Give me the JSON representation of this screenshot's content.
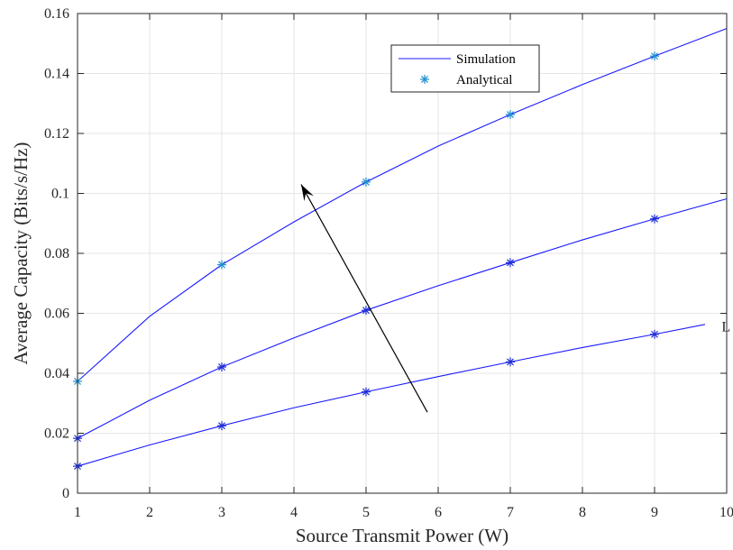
{
  "chart_data": {
    "type": "line",
    "xlabel": "Source Transmit Power (W)",
    "ylabel": "Average Capacity (Bits/s/Hz)",
    "xlim": [
      1,
      10
    ],
    "ylim": [
      0,
      0.16
    ],
    "xticks": [
      "1",
      "2",
      "3",
      "4",
      "5",
      "6",
      "7",
      "8",
      "9",
      "10"
    ],
    "yticks": [
      "0",
      "0.02",
      "0.04",
      "0.06",
      "0.08",
      "0.1",
      "0.12",
      "0.14",
      "0.16"
    ],
    "grid": true,
    "legend": {
      "position": "top-center",
      "entries": [
        {
          "label": "Simulation",
          "style": "line"
        },
        {
          "label": "Analytical",
          "style": "asterisk"
        }
      ]
    },
    "series": [
      {
        "role": "simulation",
        "x": [
          1,
          2,
          3,
          4,
          5,
          6,
          7,
          8,
          9,
          10
        ],
        "y": [
          0.0373,
          0.059,
          0.0762,
          0.0905,
          0.1038,
          0.1158,
          0.1263,
          0.1363,
          0.1458,
          0.155
        ],
        "marker_color": "#1f8fcf"
      },
      {
        "role": "simulation",
        "x": [
          1,
          2,
          3,
          4,
          5,
          6,
          7,
          8,
          9,
          10
        ],
        "y": [
          0.0183,
          0.031,
          0.0421,
          0.0518,
          0.061,
          0.0692,
          0.0769,
          0.0845,
          0.0915,
          0.0982
        ],
        "marker_color": "#1f2fd4"
      },
      {
        "role": "simulation",
        "x": [
          1,
          2,
          3,
          4,
          5,
          6,
          7,
          8,
          9,
          9.7
        ],
        "y": [
          0.009,
          0.0161,
          0.0225,
          0.0285,
          0.0338,
          0.0389,
          0.0438,
          0.0486,
          0.053,
          0.0563
        ],
        "marker_color": "#1f2fd4"
      }
    ],
    "markers_at": [
      1,
      3,
      5,
      7,
      9
    ],
    "annotations": [
      {
        "type": "arrow",
        "from": [
          5.85,
          0.027
        ],
        "to": [
          4.1,
          0.103
        ]
      },
      {
        "type": "text",
        "text": "L",
        "x": 9.93,
        "y": 0.0555
      }
    ],
    "colors": {
      "line": "#1a1aff",
      "axis": "#262626",
      "grid": "#e6e6e6",
      "arrow": "#000000"
    }
  }
}
